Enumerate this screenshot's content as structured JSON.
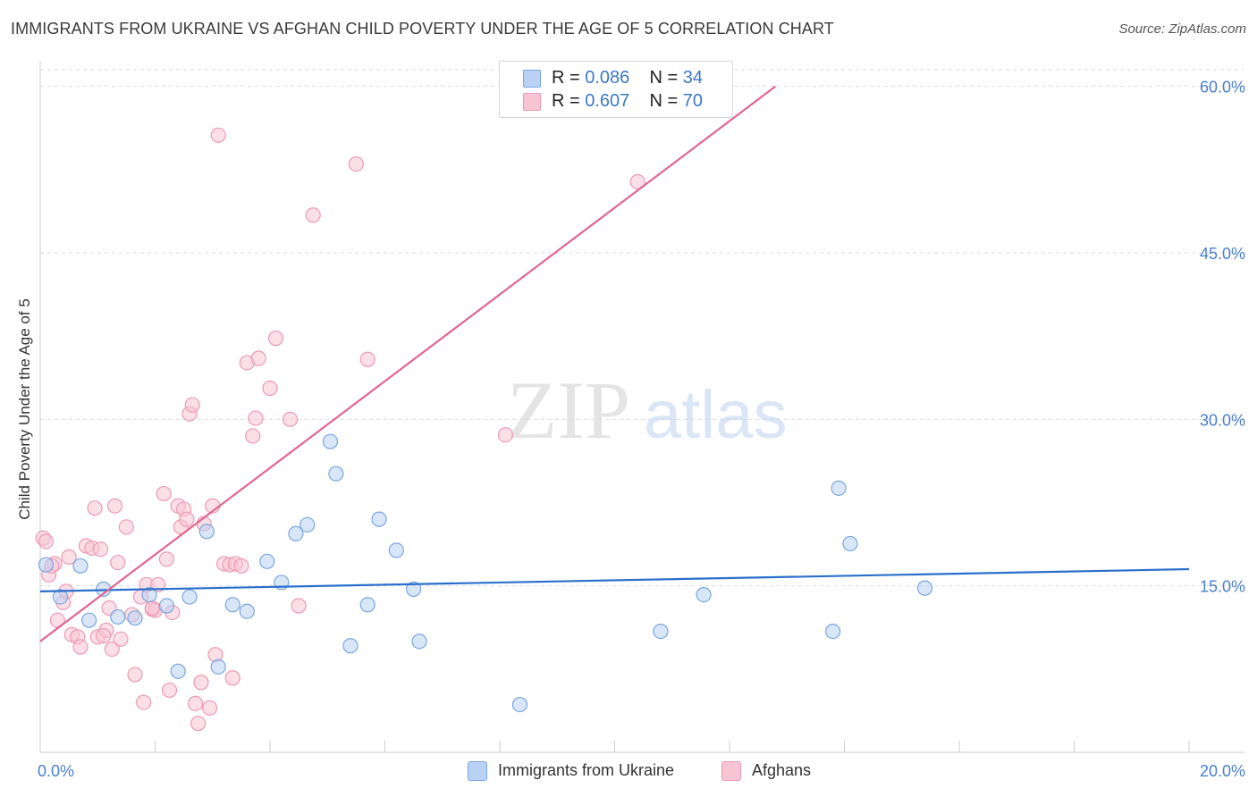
{
  "header": {
    "title": "IMMIGRANTS FROM UKRAINE VS AFGHAN CHILD POVERTY UNDER THE AGE OF 5 CORRELATION CHART",
    "source": "Source: ZipAtlas.com"
  },
  "watermark": {
    "zip": "ZIP",
    "atlas": "atlas"
  },
  "legend": {
    "series1": {
      "r_label": "R = ",
      "r_value": "0.086",
      "n_label": "N = ",
      "n_value": "34"
    },
    "series2": {
      "r_label": "R = ",
      "r_value": "0.607",
      "n_label": "N = ",
      "n_value": "70"
    }
  },
  "bottom_legend": {
    "series1": "Immigrants from Ukraine",
    "series2": "Afghans"
  },
  "colors": {
    "blue_fill": "#b9d1f2",
    "blue_stroke": "#7aa6e0",
    "blue_line": "#2a6fcc",
    "pink_fill": "#f7c4d3",
    "pink_stroke": "#ec9ab3",
    "pink_line": "#e0668e",
    "grid": "#dddddd",
    "tick_label": "#4a7fd0"
  },
  "chart_data": {
    "type": "scatter",
    "title": "IMMIGRANTS FROM UKRAINE VS AFGHAN CHILD POVERTY UNDER THE AGE OF 5 CORRELATION CHART",
    "xlabel": "",
    "ylabel": "Child Poverty Under the Age of 5",
    "xlim": [
      0,
      20
    ],
    "ylim": [
      0,
      61.5
    ],
    "x_tick_labels": [
      {
        "value": 0,
        "label": "0.0%"
      },
      {
        "value": 20,
        "label": "20.0%"
      }
    ],
    "y_tick_labels": [
      {
        "value": 15,
        "label": "15.0%"
      },
      {
        "value": 30,
        "label": "30.0%"
      },
      {
        "value": 45,
        "label": "45.0%"
      },
      {
        "value": 60,
        "label": "60.0%"
      }
    ],
    "series": [
      {
        "name": "Immigrants from Ukraine",
        "color": "#7aa6e0",
        "points": [
          [
            0.1,
            16.9
          ],
          [
            0.35,
            14.0
          ],
          [
            0.7,
            16.8
          ],
          [
            0.85,
            11.9
          ],
          [
            1.1,
            14.7
          ],
          [
            1.35,
            12.2
          ],
          [
            1.65,
            12.1
          ],
          [
            1.9,
            14.2
          ],
          [
            2.2,
            13.2
          ],
          [
            2.4,
            7.3
          ],
          [
            2.6,
            14.0
          ],
          [
            2.9,
            19.9
          ],
          [
            3.1,
            7.7
          ],
          [
            3.35,
            13.3
          ],
          [
            3.6,
            12.7
          ],
          [
            3.95,
            17.2
          ],
          [
            4.2,
            15.3
          ],
          [
            4.45,
            19.7
          ],
          [
            4.65,
            20.5
          ],
          [
            5.05,
            28.0
          ],
          [
            5.15,
            25.1
          ],
          [
            5.4,
            9.6
          ],
          [
            5.7,
            13.3
          ],
          [
            5.9,
            21.0
          ],
          [
            6.2,
            18.2
          ],
          [
            6.5,
            14.7
          ],
          [
            6.6,
            10.0
          ],
          [
            8.35,
            4.3
          ],
          [
            10.8,
            10.9
          ],
          [
            11.55,
            14.2
          ],
          [
            13.8,
            10.9
          ],
          [
            13.9,
            23.8
          ],
          [
            14.1,
            18.8
          ],
          [
            15.4,
            14.8
          ]
        ],
        "trend": {
          "x": [
            0,
            20
          ],
          "y": [
            14.5,
            16.5
          ]
        }
      },
      {
        "name": "Afghans",
        "color": "#ec9ab3",
        "points": [
          [
            0.05,
            19.3
          ],
          [
            0.15,
            16.0
          ],
          [
            0.25,
            17.0
          ],
          [
            0.3,
            11.9
          ],
          [
            0.4,
            13.5
          ],
          [
            0.45,
            14.5
          ],
          [
            0.5,
            17.6
          ],
          [
            0.55,
            10.6
          ],
          [
            0.65,
            10.4
          ],
          [
            0.7,
            9.5
          ],
          [
            0.8,
            18.6
          ],
          [
            0.9,
            18.4
          ],
          [
            0.95,
            22.0
          ],
          [
            1.0,
            10.4
          ],
          [
            1.05,
            18.3
          ],
          [
            1.15,
            11.0
          ],
          [
            1.2,
            13.0
          ],
          [
            1.25,
            9.3
          ],
          [
            1.3,
            22.2
          ],
          [
            1.35,
            17.1
          ],
          [
            1.4,
            10.2
          ],
          [
            1.5,
            20.3
          ],
          [
            1.6,
            12.4
          ],
          [
            1.65,
            7.0
          ],
          [
            1.75,
            14.0
          ],
          [
            1.8,
            4.5
          ],
          [
            1.85,
            15.1
          ],
          [
            1.95,
            12.9
          ],
          [
            2.0,
            12.8
          ],
          [
            2.05,
            15.1
          ],
          [
            2.15,
            23.3
          ],
          [
            2.2,
            17.4
          ],
          [
            2.25,
            5.6
          ],
          [
            2.3,
            12.6
          ],
          [
            2.4,
            22.2
          ],
          [
            2.45,
            20.3
          ],
          [
            2.5,
            21.9
          ],
          [
            2.55,
            21.0
          ],
          [
            2.6,
            30.5
          ],
          [
            2.65,
            31.3
          ],
          [
            2.7,
            4.4
          ],
          [
            2.75,
            2.6
          ],
          [
            2.8,
            6.3
          ],
          [
            2.85,
            20.6
          ],
          [
            2.95,
            4.0
          ],
          [
            3.0,
            22.2
          ],
          [
            3.05,
            8.8
          ],
          [
            3.1,
            55.6
          ],
          [
            3.2,
            17.0
          ],
          [
            3.3,
            16.9
          ],
          [
            3.35,
            6.7
          ],
          [
            3.4,
            17.0
          ],
          [
            3.5,
            16.8
          ],
          [
            3.6,
            35.1
          ],
          [
            3.7,
            28.5
          ],
          [
            3.75,
            30.1
          ],
          [
            3.8,
            35.5
          ],
          [
            4.0,
            32.8
          ],
          [
            4.1,
            37.3
          ],
          [
            4.35,
            30.0
          ],
          [
            4.5,
            13.2
          ],
          [
            4.75,
            48.4
          ],
          [
            5.5,
            53.0
          ],
          [
            5.7,
            35.4
          ],
          [
            8.1,
            28.6
          ],
          [
            10.4,
            51.4
          ],
          [
            0.1,
            19.0
          ],
          [
            0.2,
            16.8
          ],
          [
            1.1,
            10.5
          ],
          [
            1.95,
            13.0
          ]
        ],
        "trend": {
          "x": [
            0,
            12.8
          ],
          "y": [
            10.0,
            60.0
          ]
        }
      }
    ],
    "grid": true
  }
}
